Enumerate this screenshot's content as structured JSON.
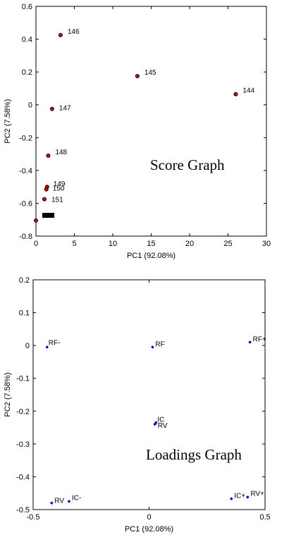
{
  "chart_data": [
    {
      "type": "scatter",
      "xlabel": "PC1 (92.08%)",
      "ylabel": "PC2 (7.58%)",
      "xlim": [
        0,
        30
      ],
      "ylim": [
        -0.8,
        0.6
      ],
      "xticks": [
        0,
        5,
        10,
        15,
        20,
        25,
        30
      ],
      "xtick_labels": [
        "0",
        "5",
        "10",
        "15",
        "20",
        "25",
        "30"
      ],
      "yticks": [
        -0.8,
        -0.6,
        -0.4,
        -0.2,
        0,
        0.2,
        0.4,
        0.6
      ],
      "ytick_labels": [
        "-0.8",
        "-0.6",
        "-0.4",
        "-0.2",
        "0",
        "0.2",
        "0.4",
        "0.6"
      ],
      "grid": false,
      "annotation": "Score Graph",
      "marker_color": "#cc0000",
      "points": [
        {
          "x": 3.2,
          "y": 0.425,
          "label": "146"
        },
        {
          "x": 13.2,
          "y": 0.175,
          "label": "145"
        },
        {
          "x": 26.0,
          "y": 0.065,
          "label": "144"
        },
        {
          "x": 2.1,
          "y": -0.025,
          "label": "147"
        },
        {
          "x": 1.6,
          "y": -0.31,
          "label": "148"
        },
        {
          "x": 1.45,
          "y": -0.5,
          "label": "149"
        },
        {
          "x": 1.35,
          "y": -0.515,
          "label": "150"
        },
        {
          "x": 1.1,
          "y": -0.575,
          "label": "151"
        },
        {
          "x": 0.0,
          "y": -0.705,
          "label": ""
        }
      ]
    },
    {
      "type": "scatter",
      "xlabel": "PC1 (92.08%)",
      "ylabel": "PC2 (7.58%)",
      "xlim": [
        -0.5,
        0.5
      ],
      "ylim": [
        -0.5,
        0.2
      ],
      "xticks": [
        -0.5,
        0,
        0.5
      ],
      "xtick_labels": [
        "-0.5",
        "0",
        "0.5"
      ],
      "yticks": [
        -0.5,
        -0.4,
        -0.3,
        -0.2,
        -0.1,
        0,
        0.1,
        0.2
      ],
      "ytick_labels": [
        "-0.5",
        "-0.4",
        "-0.3",
        "-0.2",
        "-0.1",
        "0",
        "0.1",
        "0.2"
      ],
      "grid": false,
      "annotation": "Loadings Graph",
      "marker_color": "#0000cc",
      "points": [
        {
          "x": -0.44,
          "y": -0.005,
          "label": "RF-"
        },
        {
          "x": 0.015,
          "y": -0.005,
          "label": "RF"
        },
        {
          "x": 0.435,
          "y": 0.01,
          "label": "RF+"
        },
        {
          "x": 0.03,
          "y": -0.235,
          "label": "IC"
        },
        {
          "x": 0.025,
          "y": -0.24,
          "label": "RV"
        },
        {
          "x": -0.42,
          "y": -0.48,
          "label": "RV"
        },
        {
          "x": -0.345,
          "y": -0.475,
          "label": "IC-"
        },
        {
          "x": 0.355,
          "y": -0.467,
          "label": "IC+"
        },
        {
          "x": 0.425,
          "y": -0.462,
          "label": "RV+"
        }
      ]
    }
  ]
}
